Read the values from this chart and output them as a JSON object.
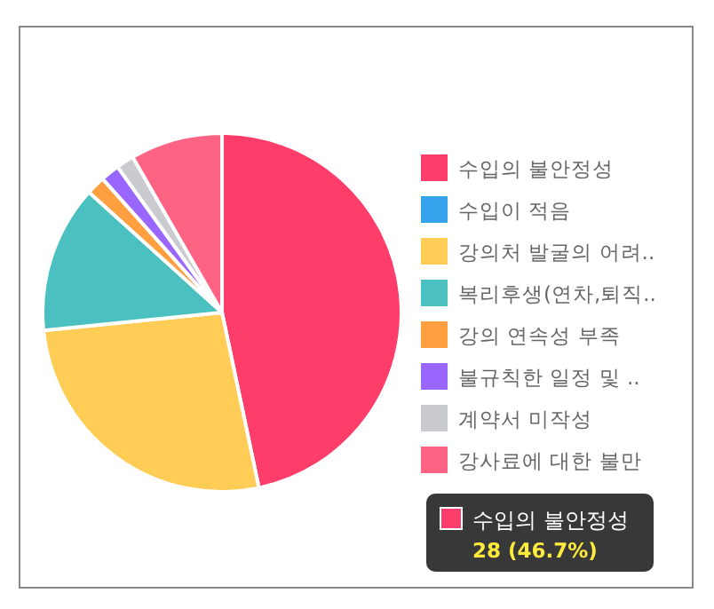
{
  "chart_data": {
    "type": "pie",
    "categories": [
      "수입의 불안정성",
      "수입이 적음",
      "강의처 발굴의 어려..",
      "복리후생(연차,퇴직..",
      "강의 연속성 부족",
      "불규칙한 일정 및 ..",
      "계약서 미작성",
      "강사료에 대한 불만"
    ],
    "values": [
      46.7,
      0,
      26.7,
      13.3,
      1.7,
      1.7,
      1.6,
      8.3
    ],
    "colors": [
      "#ff3d6a",
      "#36a2eb",
      "#ffcd56",
      "#4bc0c0",
      "#ff9f40",
      "#9966ff",
      "#c9cbcf",
      "#ff6384"
    ],
    "legend": "right",
    "annotations": [
      "수입의 불안정성",
      "28 (46.7%)"
    ]
  }
}
